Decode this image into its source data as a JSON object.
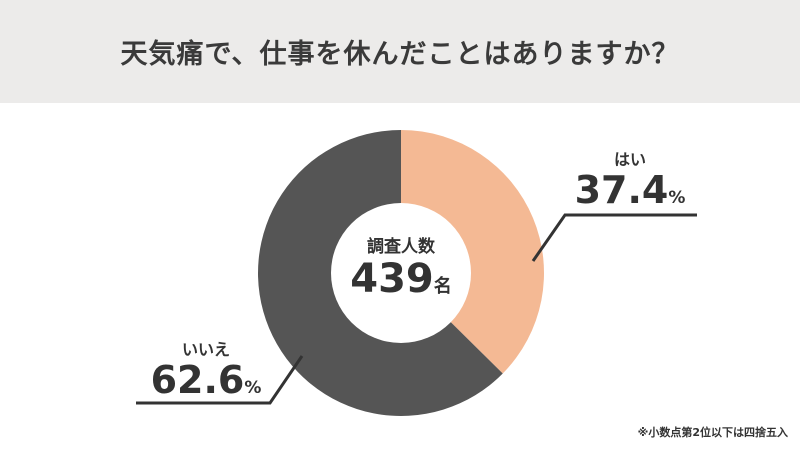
{
  "header": {
    "title": "天気痛で、仕事を休んだことはありますか？"
  },
  "center": {
    "caption": "調査人数",
    "value": "439",
    "unit": "名"
  },
  "labels": {
    "yes": {
      "name": "はい",
      "value": "37.4",
      "unit": "%"
    },
    "no": {
      "name": "いいえ",
      "value": "62.6",
      "unit": "%"
    }
  },
  "footnote": "※小数点第2位以下は四捨五入",
  "colors": {
    "yes": "#f4b994",
    "no": "#555555",
    "header_bg": "#ecebea",
    "text": "#333333"
  },
  "chart_data": {
    "type": "pie",
    "subtype": "donut",
    "title": "天気痛で、仕事を休んだことはありますか？",
    "categories": [
      "はい",
      "いいえ"
    ],
    "values": [
      37.4,
      62.6
    ],
    "unit": "%",
    "colors": [
      "#f4b994",
      "#555555"
    ],
    "center_text": "調査人数 439名",
    "total_respondents": 439,
    "start_angle": "12 o'clock, clockwise",
    "annotations": [
      "※小数点第2位以下は四捨五入"
    ]
  }
}
